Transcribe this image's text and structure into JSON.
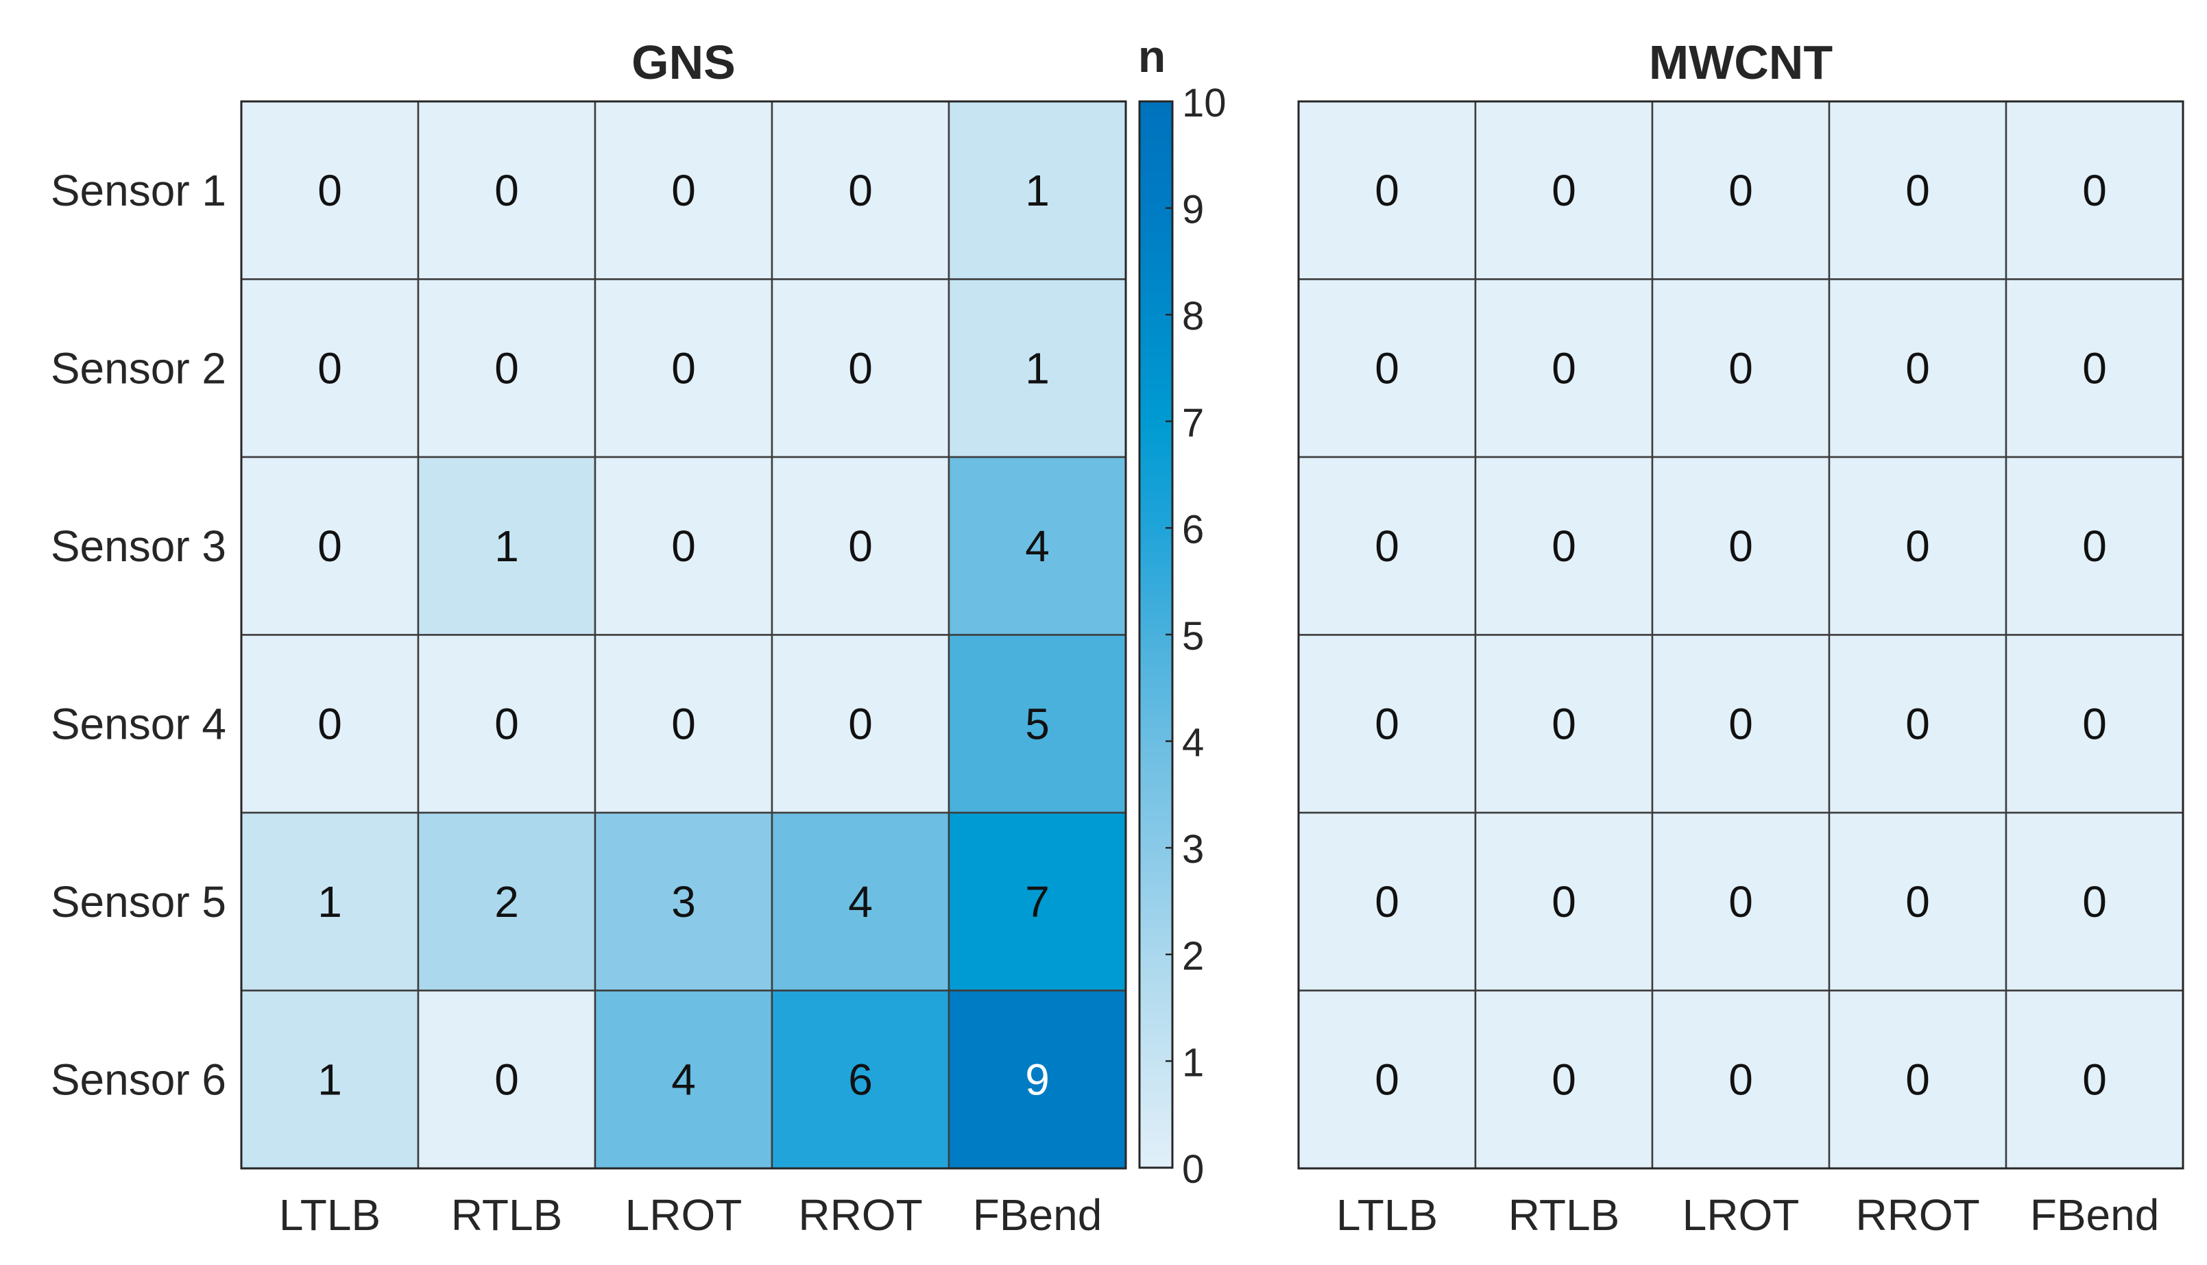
{
  "chart_data": [
    {
      "type": "heatmap",
      "title": "GNS",
      "row_labels": [
        "Sensor 1",
        "Sensor 2",
        "Sensor 3",
        "Sensor 4",
        "Sensor 5",
        "Sensor 6"
      ],
      "column_labels": [
        "LTLB",
        "RTLB",
        "LROT",
        "RROT",
        "FBend"
      ],
      "values": [
        [
          0,
          0,
          0,
          0,
          1
        ],
        [
          0,
          0,
          0,
          0,
          1
        ],
        [
          0,
          1,
          0,
          0,
          4
        ],
        [
          0,
          0,
          0,
          0,
          5
        ],
        [
          1,
          2,
          3,
          4,
          7
        ],
        [
          1,
          0,
          4,
          6,
          9
        ]
      ],
      "color_limits": [
        0,
        10
      ]
    },
    {
      "type": "heatmap",
      "title": "MWCNT",
      "row_labels": [
        "",
        "",
        "",
        "",
        "",
        ""
      ],
      "column_labels": [
        "LTLB",
        "RTLB",
        "LROT",
        "RROT",
        "FBend"
      ],
      "values": [
        [
          0,
          0,
          0,
          0,
          0
        ],
        [
          0,
          0,
          0,
          0,
          0
        ],
        [
          0,
          0,
          0,
          0,
          0
        ],
        [
          0,
          0,
          0,
          0,
          0
        ],
        [
          0,
          0,
          0,
          0,
          0
        ],
        [
          0,
          0,
          0,
          0,
          0
        ]
      ],
      "color_limits": [
        0,
        10
      ]
    }
  ],
  "colorbar": {
    "title": "n",
    "range": [
      0,
      10
    ],
    "ticks": [
      0,
      1,
      2,
      3,
      4,
      5,
      6,
      7,
      8,
      9,
      10
    ],
    "colors": {
      "low": "#e2f0f9",
      "high": "#0072bd"
    }
  }
}
